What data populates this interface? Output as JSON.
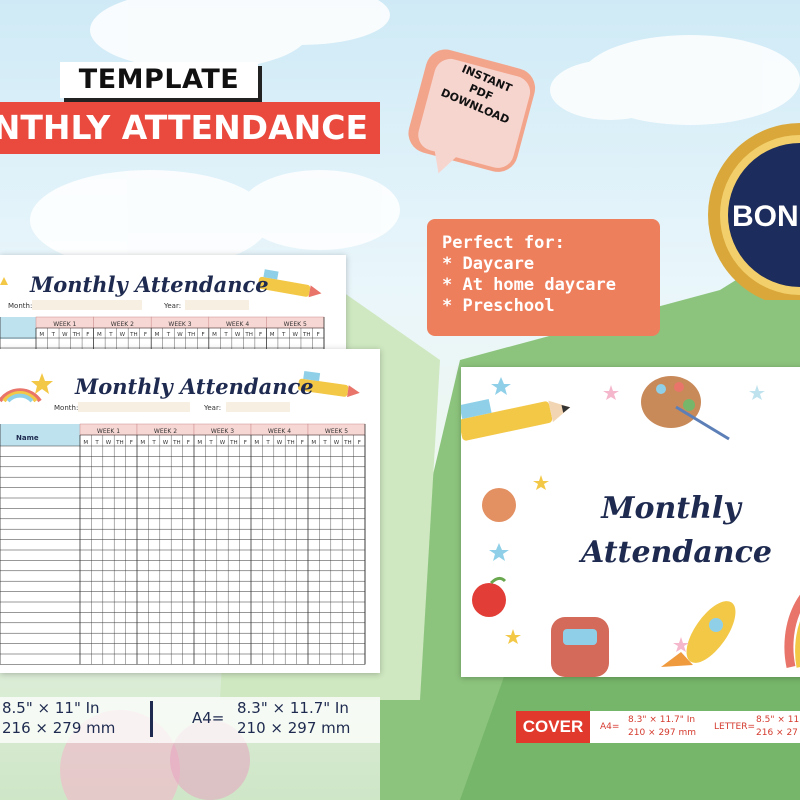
{
  "header": {
    "template_label": "TEMPLATE",
    "banner_title": "NTHLY ATTENDANCE",
    "instant_download": [
      "INSTANT",
      "PDF",
      "DOWNLOAD"
    ],
    "bonus_label": "BON"
  },
  "perfect_for": {
    "heading": "Perfect for:",
    "items": [
      "* Daycare",
      "* At home daycare",
      "* Preschool"
    ]
  },
  "sheet": {
    "title": "Monthly Attendance",
    "month_label": "Month:",
    "year_label": "Year:",
    "name_header": "Name",
    "weeks": [
      "WEEK 1",
      "WEEK 2",
      "WEEK 3",
      "WEEK 4",
      "WEEK 5"
    ],
    "days": [
      "M",
      "T",
      "W",
      "TH",
      "F"
    ]
  },
  "cover": {
    "title_line1": "Monthly",
    "title_line2": "Attendance"
  },
  "sizes": {
    "letter_in": "8.5\" × 11\" In",
    "letter_mm": "216 ⨯ 279 mm",
    "a4_label": "A4=",
    "a4_in": "8.3\" × 11.7\" In",
    "a4_mm": "210 ⨯ 297 mm"
  },
  "cover_sizes": {
    "badge": "COVER",
    "a4_label": "A4=",
    "a4_in": "8.3\" × 11.7\" In",
    "a4_mm": "210 ⨯ 297 mm",
    "letter_label": "LETTER=",
    "letter_in": "8.5\" × 11",
    "letter_mm": "216 ⨯ 27"
  },
  "colors": {
    "banner_red": "#ea4a3e",
    "accent_orange": "#ee7f5d",
    "navy": "#1e2a4f",
    "week_pink": "#f7d7d4",
    "name_blue": "#bfe3ee"
  }
}
